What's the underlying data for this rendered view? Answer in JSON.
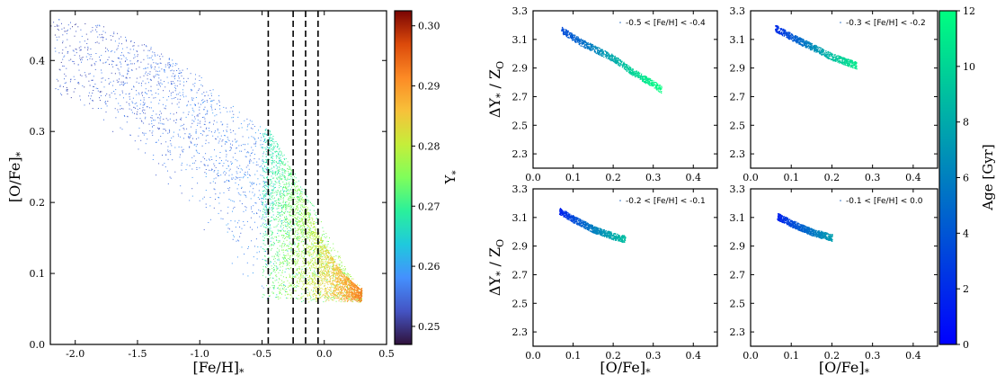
{
  "chart_data": [
    {
      "type": "scatter",
      "panel": "left",
      "title": "",
      "xlabel": "[Fe/H]",
      "xlabel_sub": "*",
      "ylabel": "[O/Fe]",
      "ylabel_sub": "*",
      "xlim": [
        -2.2,
        0.5
      ],
      "ylim": [
        0.0,
        0.47
      ],
      "xticks": [
        "-2.0",
        "-1.5",
        "-1.0",
        "-0.5",
        "0.0",
        "0.5"
      ],
      "xtick_values": [
        -2.0,
        -1.5,
        -1.0,
        -0.5,
        0.0,
        0.5
      ],
      "yticks": [
        "0.0",
        "0.1",
        "0.2",
        "0.3",
        "0.4"
      ],
      "ytick_values": [
        0.0,
        0.1,
        0.2,
        0.3,
        0.4
      ],
      "vlines": [
        -0.45,
        -0.25,
        -0.15,
        -0.05
      ],
      "vline_style": "dashed",
      "color_variable": "Y*",
      "colorbar": {
        "label": "Y",
        "label_sub": "*",
        "range": [
          0.247,
          0.3025
        ],
        "ticks": [
          "0.25",
          "0.26",
          "0.27",
          "0.28",
          "0.29",
          "0.30"
        ],
        "tick_values": [
          0.25,
          0.26,
          0.27,
          0.28,
          0.29,
          0.3
        ],
        "colormap": "turbo"
      },
      "distribution": {
        "upper_envelope": [
          [
            -2.2,
            0.46
          ],
          [
            -1.8,
            0.45
          ],
          [
            -1.4,
            0.42
          ],
          [
            -1.0,
            0.38
          ],
          [
            -0.7,
            0.33
          ],
          [
            -0.45,
            0.3
          ],
          [
            -0.25,
            0.25
          ],
          [
            -0.1,
            0.2
          ],
          [
            0.05,
            0.15
          ],
          [
            0.2,
            0.1
          ],
          [
            0.3,
            0.08
          ]
        ],
        "lower_bound": 0.06,
        "bright_front": [
          [
            -0.45,
            0.305
          ],
          [
            -0.3,
            0.26
          ],
          [
            -0.15,
            0.2
          ],
          [
            0.0,
            0.14
          ],
          [
            0.15,
            0.1
          ],
          [
            0.28,
            0.08
          ]
        ]
      }
    },
    {
      "type": "scatter",
      "panel": "top-left-small",
      "legend": "-0.5 < [Fe/H] < -0.4",
      "xlim": [
        0.0,
        0.46
      ],
      "ylim": [
        2.2,
        3.3
      ],
      "color_variable": "Age [Gyr]",
      "trend": [
        [
          0.07,
          3.17,
          3.5
        ],
        [
          0.12,
          3.08,
          5
        ],
        [
          0.2,
          2.97,
          8
        ],
        [
          0.25,
          2.87,
          10
        ],
        [
          0.3,
          2.79,
          11.5
        ],
        [
          0.32,
          2.75,
          12
        ]
      ]
    },
    {
      "type": "scatter",
      "panel": "top-right-small",
      "legend": "-0.3 < [Fe/H] < -0.2",
      "xlim": [
        0.0,
        0.46
      ],
      "ylim": [
        2.2,
        3.3
      ],
      "color_variable": "Age [Gyr]",
      "trend": [
        [
          0.06,
          3.18,
          2
        ],
        [
          0.1,
          3.12,
          4
        ],
        [
          0.15,
          3.05,
          6.5
        ],
        [
          0.2,
          2.98,
          9
        ],
        [
          0.26,
          2.92,
          11
        ]
      ]
    },
    {
      "type": "scatter",
      "panel": "bottom-left-small",
      "legend": "-0.2 < [Fe/H] < -0.1",
      "xlim": [
        0.0,
        0.46
      ],
      "ylim": [
        2.2,
        3.3
      ],
      "color_variable": "Age [Gyr]",
      "trend": [
        [
          0.065,
          3.15,
          1.5
        ],
        [
          0.1,
          3.09,
          3.5
        ],
        [
          0.15,
          3.02,
          6
        ],
        [
          0.2,
          2.97,
          8
        ],
        [
          0.23,
          2.95,
          9
        ]
      ]
    },
    {
      "type": "scatter",
      "panel": "bottom-right-small",
      "legend": "-0.1 < [Fe/H] < 0.0",
      "xlim": [
        0.0,
        0.46
      ],
      "ylim": [
        2.2,
        3.3
      ],
      "color_variable": "Age [Gyr]",
      "trend": [
        [
          0.065,
          3.11,
          1.5
        ],
        [
          0.1,
          3.06,
          3.5
        ],
        [
          0.15,
          3.0,
          5.5
        ],
        [
          0.2,
          2.96,
          7.5
        ]
      ]
    }
  ],
  "small_panels": {
    "xlabel": "[O/Fe]",
    "xlabel_sub": "*",
    "ylabel": "ΔY",
    "ylabel_sub": "*",
    "ylabel_rest": " / Z",
    "ylabel_rest_sub": "O",
    "xticks": [
      "0.0",
      "0.1",
      "0.2",
      "0.3",
      "0.4"
    ],
    "xtick_values": [
      0.0,
      0.1,
      0.2,
      0.3,
      0.4
    ],
    "yticks": [
      "2.3",
      "2.5",
      "2.7",
      "2.9",
      "3.1",
      "3.3"
    ],
    "ytick_values": [
      2.3,
      2.5,
      2.7,
      2.9,
      3.1,
      3.3
    ]
  },
  "age_colorbar": {
    "label": "Age [Gyr]",
    "range": [
      0,
      12
    ],
    "ticks": [
      "0",
      "2",
      "4",
      "6",
      "8",
      "10",
      "12"
    ],
    "tick_values": [
      0,
      2,
      4,
      6,
      8,
      10,
      12
    ],
    "colormap": "winter"
  }
}
